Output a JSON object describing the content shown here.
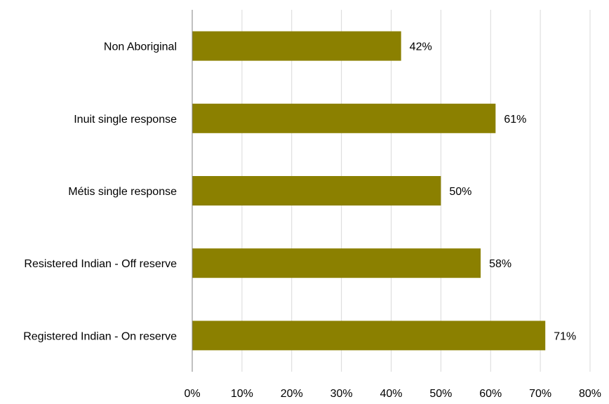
{
  "chart_data": {
    "type": "bar",
    "orientation": "horizontal",
    "categories": [
      "Non Aboriginal",
      "Inuit single response",
      "Métis single response",
      "Resistered Indian - Off reserve",
      "Registered Indian - On reserve"
    ],
    "values": [
      42,
      61,
      50,
      58,
      71
    ],
    "data_labels": [
      "42%",
      "61%",
      "50%",
      "58%",
      "71%"
    ],
    "xlim": [
      0,
      80
    ],
    "x_ticks": [
      0,
      10,
      20,
      30,
      40,
      50,
      60,
      70,
      80
    ],
    "x_tick_labels": [
      "0%",
      "10%",
      "20%",
      "30%",
      "40%",
      "50%",
      "60%",
      "70%",
      "80%"
    ],
    "title": "",
    "xlabel": "",
    "ylabel": "",
    "grid": "vertical",
    "legend": "none",
    "bar_color": "#8b8000"
  }
}
